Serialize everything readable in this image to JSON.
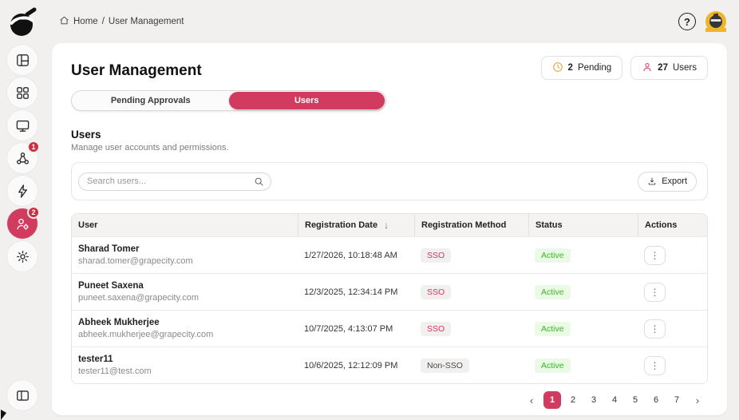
{
  "colors": {
    "accent": "#d23b60",
    "sidebar_active": "#d8466d",
    "badge_red": "#d12f3f",
    "green_text": "#3bb926",
    "green_bg": "#eafae5",
    "amber": "#e2a33c",
    "sso_text": "#d6336c",
    "avatar_bg": "#f0b429"
  },
  "sidebar": {
    "logo_icon": "ninja-logo",
    "items": [
      {
        "name": "dashboard",
        "icon": "layout-dashboard-icon",
        "badge": null,
        "active": false
      },
      {
        "name": "apps",
        "icon": "category-grid-icon",
        "badge": null,
        "active": false
      },
      {
        "name": "monitor",
        "icon": "monitor-icon",
        "badge": null,
        "active": false
      },
      {
        "name": "integrations",
        "icon": "webhook-icon",
        "badge": "1",
        "active": false
      },
      {
        "name": "activity",
        "icon": "zap-icon",
        "badge": null,
        "active": false
      },
      {
        "name": "user-management",
        "icon": "user-gear-icon",
        "badge": "2",
        "active": true
      },
      {
        "name": "settings",
        "icon": "settings-gear-icon",
        "badge": null,
        "active": false
      }
    ],
    "collapse_icon": "panel-left-icon"
  },
  "topbar": {
    "breadcrumb": {
      "home": "Home",
      "separator": "/",
      "current": "User Management"
    },
    "help_icon": "help-icon",
    "avatar_icon": "ninja-avatar"
  },
  "header": {
    "title": "User Management",
    "badges": [
      {
        "icon": "clock-icon",
        "count": "2",
        "label": "Pending"
      },
      {
        "icon": "person-icon",
        "count": "27",
        "label": "Users"
      }
    ]
  },
  "tabs": [
    {
      "label": "Pending Approvals",
      "active": false
    },
    {
      "label": "Users",
      "active": true
    }
  ],
  "section": {
    "title": "Users",
    "subtitle": "Manage user accounts and permissions."
  },
  "toolbar": {
    "search_placeholder": "Search users...",
    "export_label": "Export"
  },
  "table": {
    "columns": [
      {
        "label": "User"
      },
      {
        "label": "Registration Date",
        "sort": "desc",
        "sort_glyph": "↓"
      },
      {
        "label": "Registration Method"
      },
      {
        "label": "Status"
      },
      {
        "label": "Actions"
      }
    ],
    "rows": [
      {
        "name": "Sharad Tomer",
        "email": "sharad.tomer@grapecity.com",
        "registered": "1/27/2026, 10:18:48 AM",
        "method": "SSO",
        "method_variant": "sso",
        "status": "Active"
      },
      {
        "name": "Puneet Saxena",
        "email": "puneet.saxena@grapecity.com",
        "registered": "12/3/2025, 12:34:14 PM",
        "method": "SSO",
        "method_variant": "sso",
        "status": "Active"
      },
      {
        "name": "Abheek Mukherjee",
        "email": "abheek.mukherjee@grapecity.com",
        "registered": "10/7/2025, 4:13:07 PM",
        "method": "SSO",
        "method_variant": "sso",
        "status": "Active"
      },
      {
        "name": "tester11",
        "email": "tester11@test.com",
        "registered": "10/6/2025, 12:12:09 PM",
        "method": "Non-SSO",
        "method_variant": "non-sso",
        "status": "Active"
      }
    ],
    "actions_glyph": "⋮"
  },
  "pagination": {
    "prev": "‹",
    "pages": [
      "1",
      "2",
      "3",
      "4",
      "5",
      "6",
      "7"
    ],
    "active_page": "1",
    "next": "›"
  }
}
